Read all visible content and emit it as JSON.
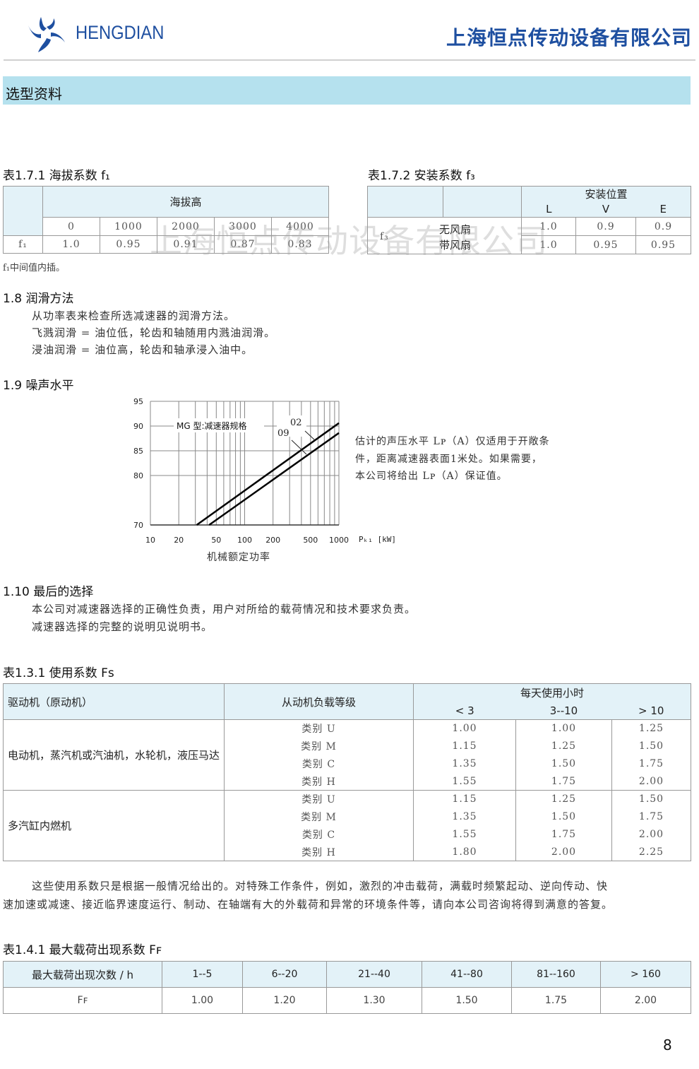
{
  "header": {
    "brand": "HENGDIAN",
    "company": "上海恒点传动设备有限公司",
    "brand_color": "#1e4fa0",
    "logo_icon": "pinwheel-logo-icon"
  },
  "band": {
    "title": "选型资料",
    "color": "#b5e1ee"
  },
  "watermark": "上海恒点传动设备有限公司",
  "table_171": {
    "title": "表1.7.1 海拔系数 f₁",
    "group_header": "海拔高",
    "altitudes": [
      "0",
      "1000",
      "2000",
      "3000",
      "4000"
    ],
    "row_label": "f₁",
    "values": [
      "1.0",
      "0.95",
      "0.91",
      "0.87",
      "0.83"
    ],
    "note": "f₁中间值内插。"
  },
  "table_172": {
    "title": "表1.7.2 安装系数 f₃",
    "group_header": "安装位置",
    "positions": [
      "L",
      "V",
      "E"
    ],
    "row_label": "f₃",
    "rows": [
      {
        "label": "无风扇",
        "values": [
          "1.0",
          "0.9",
          "0.9"
        ]
      },
      {
        "label": "带风扇",
        "values": [
          "1.0",
          "0.95",
          "0.95"
        ]
      }
    ]
  },
  "sec_18": {
    "heading": "1.8 润滑方法",
    "lines": [
      "从功率表来检查所选减速器的润滑方法。",
      "飞溅润滑 = 油位低，轮齿和轴随用内溅油润滑。",
      "浸油润滑 = 油位高，轮齿和轴承浸入油中。"
    ]
  },
  "sec_19": {
    "heading": "1.9 噪声水平",
    "note_lines": [
      "估计的声压水平 Lᴘ（A）仅适用于开敞条",
      "件，距离减速器表面1米处。如果需要，",
      "本公司将给出 Lᴘ（A）保证值。"
    ]
  },
  "chart_data": {
    "type": "line",
    "xscale": "log",
    "xlim": [
      10,
      1000
    ],
    "ylim": [
      70,
      95
    ],
    "x_ticks": [
      "10",
      "20",
      "50",
      "100",
      "200",
      "500",
      "1000"
    ],
    "y_ticks": [
      "70",
      "80",
      "85",
      "90",
      "95"
    ],
    "x_unit": "Pₖ₁ [kW]",
    "xlabel": "机械额定功率",
    "annotation": "MG 型:减速器规格",
    "grid": true,
    "series": [
      {
        "name": "02",
        "x": [
          31,
          1000
        ],
        "y": [
          70,
          90.6
        ]
      },
      {
        "name": "09",
        "x": [
          42,
          1000
        ],
        "y": [
          70,
          88.6
        ]
      }
    ]
  },
  "sec_110": {
    "heading": "1.10 最后的选择",
    "lines": [
      "本公司对减速器选择的正确性负责，用户对所给的载荷情况和技术要求负责。",
      "减速器选择的完整的说明见说明书。"
    ]
  },
  "table_131": {
    "title": "表1.3.1 使用系数 Fs",
    "headers": {
      "driver": "驱动机（原动机）",
      "load": "从动机负载等级",
      "hours": "每天使用小时",
      "hour_cols": [
        "< 3",
        "3--10",
        "> 10"
      ]
    },
    "groups": [
      {
        "driver": "电动机，蒸汽机或汽油机，水轮机，液压马达",
        "rows": [
          [
            "类别 U",
            "1.00",
            "1.00",
            "1.25"
          ],
          [
            "类别 M",
            "1.15",
            "1.25",
            "1.50"
          ],
          [
            "类别 C",
            "1.35",
            "1.50",
            "1.75"
          ],
          [
            "类别 H",
            "1.55",
            "1.75",
            "2.00"
          ]
        ]
      },
      {
        "driver": "多汽缸内燃机",
        "rows": [
          [
            "类别 U",
            "1.15",
            "1.25",
            "1.50"
          ],
          [
            "类别 M",
            "1.35",
            "1.50",
            "1.75"
          ],
          [
            "类别 C",
            "1.55",
            "1.75",
            "2.00"
          ],
          [
            "类别 H",
            "1.80",
            "2.00",
            "2.25"
          ]
        ]
      }
    ]
  },
  "paragraph": [
    "这些使用系数只是根据一般情况给出的。对特殊工作条件，例如，激烈的冲击载荷，满载时频繁起动、逆向传动、快",
    "速加速或减速、接近临界速度运行、制动、在轴端有大的外载荷和异常的环境条件等，请向本公司咨询将得到满意的答复。"
  ],
  "table_141": {
    "title": "表1.4.1 最大载荷出现系数 Fꜰ",
    "header_label": "最大载荷出现次数 / h",
    "ranges": [
      "1--5",
      "6--20",
      "21--40",
      "41--80",
      "81--160",
      "> 160"
    ],
    "row_label": "Fꜰ",
    "values": [
      "1.00",
      "1.20",
      "1.30",
      "1.50",
      "1.75",
      "2.00"
    ]
  },
  "page_number": "8"
}
